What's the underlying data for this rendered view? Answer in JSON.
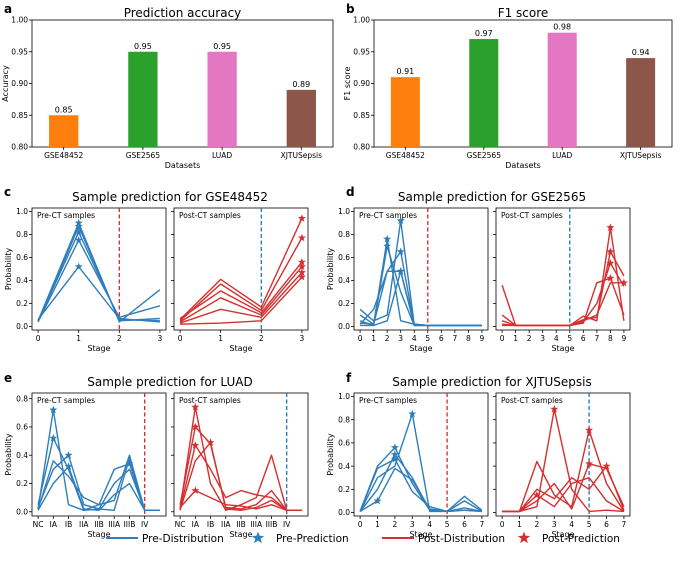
{
  "panels": {
    "a": "a",
    "b": "b",
    "c": "c",
    "d": "d",
    "e": "e",
    "f": "f"
  },
  "colors": {
    "pre": "#2e7ebb",
    "post": "#d62f2f",
    "accent_blue": "#1f77b4",
    "accent_red": "#d62728"
  },
  "chart_data": [
    {
      "id": "a",
      "type": "bar",
      "title": "Prediction accuracy",
      "xlabel": "Datasets",
      "ylabel": "Accuracy",
      "categories": [
        "GSE48452",
        "GSE2565",
        "LUAD",
        "XJTUSepsis"
      ],
      "values": [
        0.85,
        0.95,
        0.95,
        0.89
      ],
      "value_labels": [
        "0.85",
        "0.95",
        "0.95",
        "0.89"
      ],
      "bar_colors": [
        "#ff7f0e",
        "#2ca02c",
        "#e377c2",
        "#8c564b"
      ],
      "ylim": [
        0.8,
        1.0
      ],
      "yticks": [
        0.8,
        0.85,
        0.9,
        0.95,
        1.0
      ],
      "ytick_labels": [
        "0.80",
        "0.85",
        "0.90",
        "0.95",
        "1.00"
      ]
    },
    {
      "id": "b",
      "type": "bar",
      "title": "F1 score",
      "xlabel": "Datasets",
      "ylabel": "F1 score",
      "categories": [
        "GSE48452",
        "GSE2565",
        "LUAD",
        "XJTUSepsis"
      ],
      "values": [
        0.91,
        0.97,
        0.98,
        0.94
      ],
      "value_labels": [
        "0.91",
        "0.97",
        "0.98",
        "0.94"
      ],
      "bar_colors": [
        "#ff7f0e",
        "#2ca02c",
        "#e377c2",
        "#8c564b"
      ],
      "ylim": [
        0.8,
        1.0
      ],
      "yticks": [
        0.8,
        0.85,
        0.9,
        0.95,
        1.0
      ],
      "ytick_labels": [
        "0.80",
        "0.85",
        "0.90",
        "0.95",
        "1.00"
      ]
    },
    {
      "id": "c",
      "type": "line",
      "title": "Sample prediction for GSE48452",
      "xlabel": "Stage",
      "ylabel": "Probability",
      "ylim": [
        -0.03,
        1.03
      ],
      "yticks": [
        0.0,
        0.2,
        0.4,
        0.6,
        0.8,
        1.0
      ],
      "ytick_labels": [
        "0.0",
        "0.2",
        "0.4",
        "0.6",
        "0.8",
        "1.0"
      ],
      "subplots": [
        {
          "label": "Pre-CT samples",
          "kind": "pre",
          "xlim": [
            -0.15,
            3.15
          ],
          "x": [
            0,
            1,
            2,
            3
          ],
          "xtick_labels": [
            "0",
            "1",
            "2",
            "3"
          ],
          "vline": 2,
          "series": [
            {
              "values": [
                0.05,
                0.9,
                0.04,
                0.32
              ],
              "pred": 1
            },
            {
              "values": [
                0.04,
                0.87,
                0.05,
                0.07
              ],
              "pred": 1
            },
            {
              "values": [
                0.05,
                0.82,
                0.06,
                0.05
              ],
              "pred": 1
            },
            {
              "values": [
                0.04,
                0.75,
                0.08,
                0.18
              ],
              "pred": 1
            },
            {
              "values": [
                0.06,
                0.52,
                0.07,
                0.04
              ],
              "pred": 1
            }
          ]
        },
        {
          "label": "Post-CT samples",
          "kind": "post",
          "xlim": [
            -0.15,
            3.15
          ],
          "x": [
            0,
            1,
            2,
            3
          ],
          "xtick_labels": [
            "0",
            "1",
            "2",
            "3"
          ],
          "vline": 2,
          "series": [
            {
              "values": [
                0.06,
                0.41,
                0.17,
                0.94
              ],
              "pred": 3
            },
            {
              "values": [
                0.05,
                0.37,
                0.14,
                0.77
              ],
              "pred": 3
            },
            {
              "values": [
                0.07,
                0.31,
                0.12,
                0.56
              ],
              "pred": 3
            },
            {
              "values": [
                0.04,
                0.25,
                0.1,
                0.52
              ],
              "pred": 3
            },
            {
              "values": [
                0.03,
                0.15,
                0.08,
                0.47
              ],
              "pred": 3
            },
            {
              "values": [
                0.02,
                0.03,
                0.05,
                0.43
              ],
              "pred": 3
            }
          ]
        }
      ]
    },
    {
      "id": "d",
      "type": "line",
      "title": "Sample prediction for GSE2565",
      "xlabel": "Stage",
      "ylabel": "Probability",
      "ylim": [
        -0.03,
        1.03
      ],
      "yticks": [
        0.0,
        0.2,
        0.4,
        0.6,
        0.8,
        1.0
      ],
      "ytick_labels": [
        "0.0",
        "0.2",
        "0.4",
        "0.6",
        "0.8",
        "1.0"
      ],
      "subplots": [
        {
          "label": "Pre-CT samples",
          "kind": "pre",
          "xlim": [
            -0.45,
            9.45
          ],
          "x": [
            0,
            1,
            2,
            3,
            4,
            5,
            6,
            7,
            8,
            9
          ],
          "xtick_labels": [
            "0",
            "1",
            "2",
            "3",
            "4",
            "5",
            "6",
            "7",
            "8",
            "9"
          ],
          "vline": 5,
          "series": [
            {
              "values": [
                0.15,
                0.05,
                0.1,
                0.92,
                0.02,
                0.01,
                0.01,
                0.01,
                0.01,
                0.01
              ],
              "pred": 3
            },
            {
              "values": [
                0.1,
                0.02,
                0.76,
                0.05,
                0.02,
                0.01,
                0.01,
                0.01,
                0.01,
                0.01
              ],
              "pred": 2
            },
            {
              "values": [
                0.05,
                0.01,
                0.7,
                0.3,
                0.01,
                0.01,
                0.01,
                0.01,
                0.01,
                0.01
              ],
              "pred": 2
            },
            {
              "values": [
                0.03,
                0.02,
                0.48,
                0.65,
                0.01,
                0.01,
                0.01,
                0.01,
                0.01,
                0.01
              ],
              "pred": 3
            },
            {
              "values": [
                0.02,
                0.15,
                0.48,
                0.48,
                0.02,
                0.01,
                0.01,
                0.01,
                0.01,
                0.01
              ],
              "pred": 3
            },
            {
              "values": [
                0.01,
                0.01,
                0.05,
                0.48,
                0.01,
                0.01,
                0.01,
                0.01,
                0.01,
                0.01
              ],
              "pred": 3
            }
          ]
        },
        {
          "label": "Post-CT samples",
          "kind": "post",
          "xlim": [
            -0.45,
            9.45
          ],
          "x": [
            0,
            1,
            2,
            3,
            4,
            5,
            6,
            7,
            8,
            9
          ],
          "xtick_labels": [
            "0",
            "1",
            "2",
            "3",
            "4",
            "5",
            "6",
            "7",
            "8",
            "9"
          ],
          "vline": 5,
          "series": [
            {
              "values": [
                0.36,
                0.01,
                0.01,
                0.01,
                0.01,
                0.01,
                0.09,
                0.05,
                0.86,
                0.05
              ],
              "pred": 8
            },
            {
              "values": [
                0.1,
                0.01,
                0.01,
                0.01,
                0.01,
                0.01,
                0.06,
                0.08,
                0.65,
                0.44
              ],
              "pred": 8
            },
            {
              "values": [
                0.05,
                0.01,
                0.01,
                0.01,
                0.01,
                0.01,
                0.04,
                0.2,
                0.55,
                0.35
              ],
              "pred": 8
            },
            {
              "values": [
                0.02,
                0.01,
                0.01,
                0.01,
                0.01,
                0.01,
                0.03,
                0.38,
                0.42,
                0.1
              ],
              "pred": 8
            },
            {
              "values": [
                0.01,
                0.01,
                0.01,
                0.01,
                0.01,
                0.01,
                0.05,
                0.1,
                0.38,
                0.38
              ],
              "pred": 9
            }
          ]
        }
      ]
    },
    {
      "id": "e",
      "type": "line",
      "title": "Sample prediction for LUAD",
      "xlabel": "Stage",
      "ylabel": "Probability",
      "ylim": [
        -0.03,
        0.84
      ],
      "yticks": [
        0.0,
        0.2,
        0.4,
        0.6,
        0.8
      ],
      "ytick_labels": [
        "0.0",
        "0.2",
        "0.4",
        "0.6",
        "0.8"
      ],
      "subplots": [
        {
          "label": "Pre-CT samples",
          "kind": "pre",
          "xlim": [
            -0.4,
            8.4
          ],
          "x": [
            0,
            1,
            2,
            3,
            4,
            5,
            6,
            7,
            8
          ],
          "xtick_labels": [
            "NC",
            "IA",
            "IB",
            "IIA",
            "IIB",
            "IIIA",
            "IIIB",
            "IV"
          ],
          "xtick_positions": [
            0,
            1,
            2,
            3,
            4,
            5,
            6,
            7
          ],
          "vline": 7,
          "series": [
            {
              "values": [
                0.02,
                0.72,
                0.05,
                0.01,
                0.02,
                0.01,
                0.38,
                0.01,
                0.01
              ],
              "pred": 1
            },
            {
              "values": [
                0.05,
                0.52,
                0.3,
                0.01,
                0.05,
                0.08,
                0.4,
                0.01,
                0.01
              ],
              "pred": 1
            },
            {
              "values": [
                0.03,
                0.3,
                0.4,
                0.05,
                0.02,
                0.2,
                0.3,
                0.01,
                0.01
              ],
              "pred": 2
            },
            {
              "values": [
                0.02,
                0.36,
                0.25,
                0.1,
                0.05,
                0.3,
                0.34,
                0.01,
                0.01
              ],
              "pred": 6
            },
            {
              "values": [
                0.01,
                0.2,
                0.32,
                0.02,
                0.01,
                0.12,
                0.2,
                0.01,
                0.01
              ],
              "pred": 2
            }
          ]
        },
        {
          "label": "Post-CT samples",
          "kind": "post",
          "xlim": [
            -0.4,
            8.4
          ],
          "x": [
            0,
            1,
            2,
            3,
            4,
            5,
            6,
            7,
            8
          ],
          "xtick_labels": [
            "NC",
            "IA",
            "IB",
            "IIA",
            "IIB",
            "IIIA",
            "IIIB",
            "IV"
          ],
          "xtick_positions": [
            0,
            1,
            2,
            3,
            4,
            5,
            6,
            7
          ],
          "vline": 7,
          "series": [
            {
              "values": [
                0.02,
                0.74,
                0.2,
                0.01,
                0.05,
                0.1,
                0.4,
                0.01,
                0.01
              ],
              "pred": 1
            },
            {
              "values": [
                0.05,
                0.6,
                0.48,
                0.03,
                0.02,
                0.05,
                0.15,
                0.01,
                0.01
              ],
              "pred": 1
            },
            {
              "values": [
                0.02,
                0.47,
                0.3,
                0.1,
                0.15,
                0.12,
                0.1,
                0.01,
                0.01
              ],
              "pred": 1
            },
            {
              "values": [
                0.01,
                0.36,
                0.49,
                0.02,
                0.01,
                0.03,
                0.08,
                0.01,
                0.01
              ],
              "pred": 2
            },
            {
              "values": [
                0.03,
                0.15,
                0.1,
                0.05,
                0.04,
                0.02,
                0.05,
                0.01,
                0.01
              ],
              "pred": 1
            }
          ]
        }
      ]
    },
    {
      "id": "f",
      "type": "line",
      "title": "Sample prediction for XJTUSepsis",
      "xlabel": "Stage",
      "ylabel": "Probability",
      "ylim": [
        -0.03,
        1.03
      ],
      "yticks": [
        0.0,
        0.2,
        0.4,
        0.6,
        0.8,
        1.0
      ],
      "ytick_labels": [
        "0.0",
        "0.2",
        "0.4",
        "0.6",
        "0.8",
        "1.0"
      ],
      "subplots": [
        {
          "label": "Pre-CT samples",
          "kind": "pre",
          "xlim": [
            -0.35,
            7.35
          ],
          "x": [
            0,
            1,
            2,
            3,
            4,
            5,
            6,
            7
          ],
          "xtick_labels": [
            "0",
            "1",
            "2",
            "3",
            "4",
            "5",
            "6",
            "7"
          ],
          "vline": 5,
          "series": [
            {
              "values": [
                0.01,
                0.4,
                0.56,
                0.25,
                0.02,
                0.01,
                0.14,
                0.02
              ],
              "pred": 2
            },
            {
              "values": [
                0.01,
                0.3,
                0.4,
                0.85,
                0.01,
                0.01,
                0.02,
                0.01
              ],
              "pred": 3
            },
            {
              "values": [
                0.01,
                0.2,
                0.5,
                0.3,
                0.02,
                0.01,
                0.1,
                0.01
              ],
              "pred": 2
            },
            {
              "values": [
                0.01,
                0.38,
                0.46,
                0.18,
                0.05,
                0.01,
                0.04,
                0.01
              ],
              "pred": 2
            },
            {
              "values": [
                0.01,
                0.1,
                0.38,
                0.28,
                0.03,
                0.01,
                0.02,
                0.01
              ],
              "pred": 1
            }
          ]
        },
        {
          "label": "Post-CT samples",
          "kind": "post",
          "xlim": [
            -0.35,
            7.35
          ],
          "x": [
            0,
            1,
            2,
            3,
            4,
            5,
            6,
            7
          ],
          "xtick_labels": [
            "0",
            "1",
            "2",
            "3",
            "4",
            "5",
            "6",
            "7"
          ],
          "vline": 5,
          "series": [
            {
              "values": [
                0.01,
                0.01,
                0.05,
                0.89,
                0.2,
                0.01,
                0.02,
                0.01
              ],
              "pred": 3
            },
            {
              "values": [
                0.01,
                0.01,
                0.44,
                0.15,
                0.05,
                0.71,
                0.25,
                0.01
              ],
              "pred": 5
            },
            {
              "values": [
                0.01,
                0.01,
                0.1,
                0.25,
                0.03,
                0.42,
                0.38,
                0.05
              ],
              "pred": 5
            },
            {
              "values": [
                0.01,
                0.01,
                0.2,
                0.12,
                0.3,
                0.2,
                0.4,
                0.02
              ],
              "pred": 6
            },
            {
              "values": [
                0.01,
                0.01,
                0.15,
                0.05,
                0.25,
                0.3,
                0.1,
                0.01
              ],
              "pred": 2
            }
          ]
        }
      ]
    }
  ],
  "legend": {
    "pre_distribution": "Pre-Distribution",
    "pre_prediction": "Pre-Prediction",
    "post_distribution": "Post-Distribution",
    "post_prediction": "Post-Prediction"
  }
}
